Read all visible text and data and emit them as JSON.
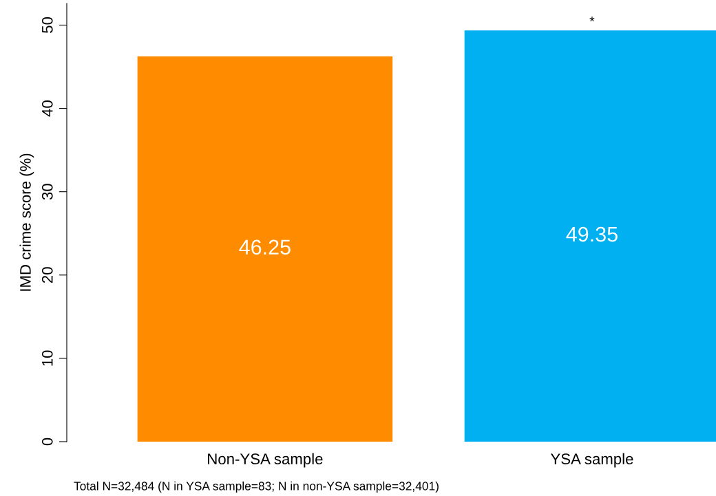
{
  "chart_data": {
    "type": "bar",
    "ylabel": "IMD crime score (%)",
    "categories": [
      "Non-YSA sample",
      "YSA sample"
    ],
    "values": [
      46.25,
      49.35
    ],
    "colors": [
      "#ff8c00",
      "#00b0f0"
    ],
    "ylim": [
      0,
      52.6
    ],
    "yticks": [
      0,
      10,
      20,
      30,
      40,
      50
    ],
    "data_labels": true,
    "grid": false,
    "legend": false,
    "annotations": [
      {
        "text": "*",
        "x": "YSA sample",
        "y": 49.35
      },
      "Total N=32,484 (N in YSA sample=83; N in non-YSA sample=32,401)"
    ]
  }
}
